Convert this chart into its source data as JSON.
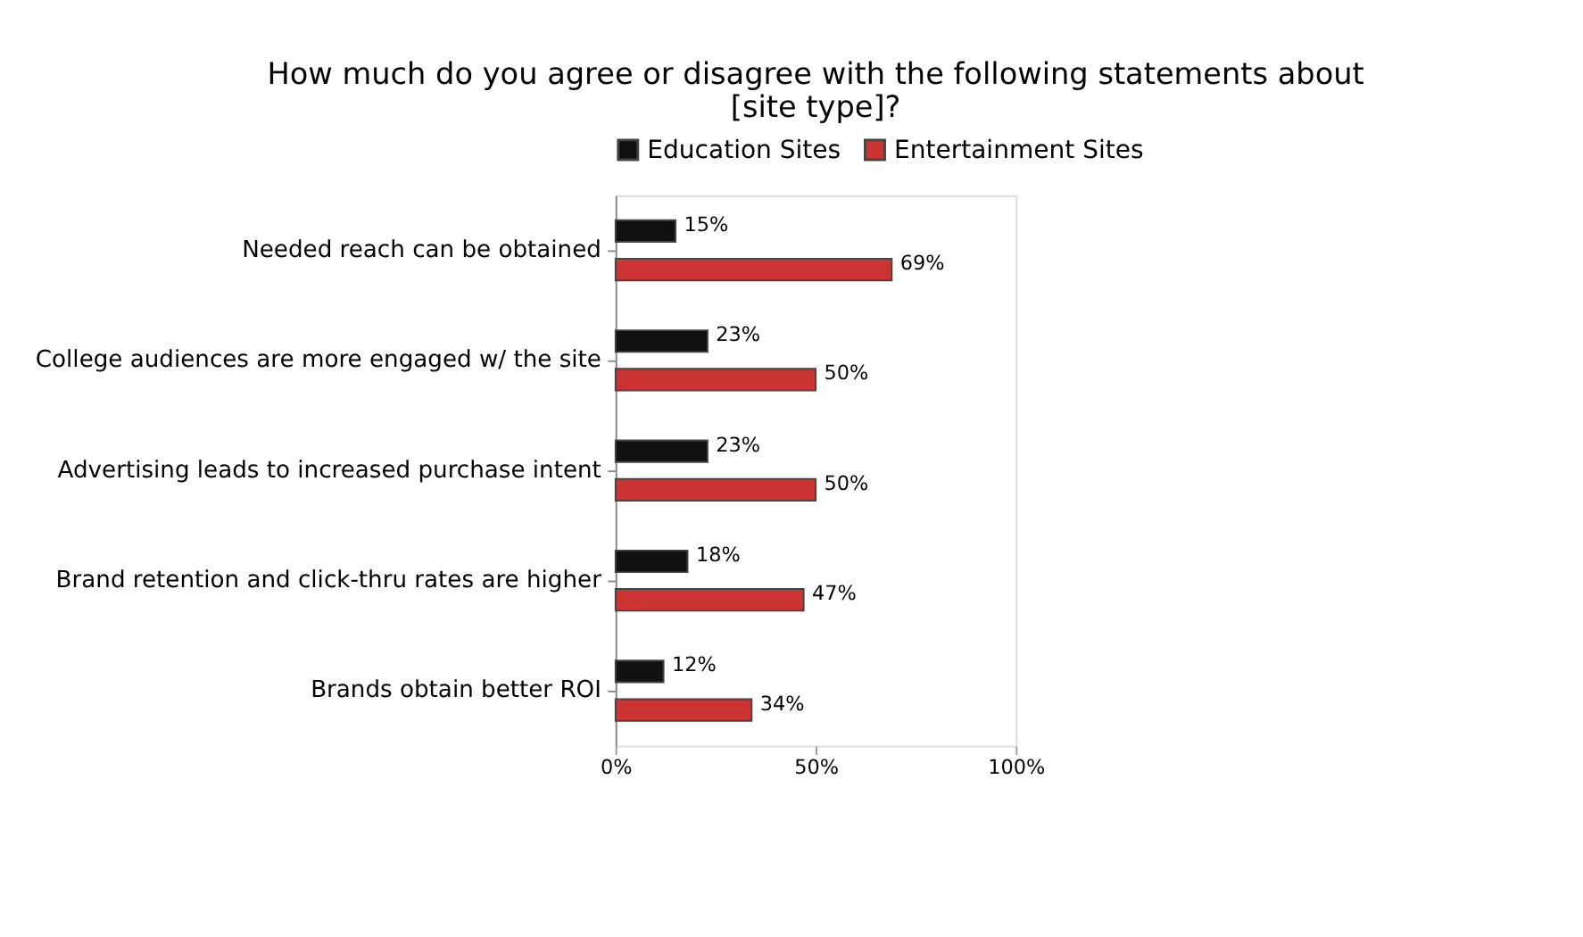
{
  "chart_data": {
    "type": "bar",
    "orientation": "horizontal",
    "title": "How much do you agree or disagree with the following statements about [site type]?",
    "categories": [
      "Needed reach can be obtained",
      "College audiences are more engaged w/ the site",
      "Advertising leads to increased purchase intent",
      "Brand retention and click-thru rates are higher",
      "Brands obtain better ROI"
    ],
    "series": [
      {
        "name": "Education Sites",
        "color": "#111111",
        "values": [
          15,
          23,
          23,
          18,
          12
        ],
        "value_labels": [
          "15%",
          "23%",
          "23%",
          "18%",
          "12%"
        ]
      },
      {
        "name": "Entertainment Sites",
        "color": "#cc3333",
        "values": [
          69,
          50,
          50,
          47,
          34
        ],
        "value_labels": [
          "69%",
          "50%",
          "50%",
          "47%",
          "34%"
        ]
      }
    ],
    "xlim": [
      0,
      100
    ],
    "xticks": [
      {
        "value": 0,
        "label": "0%"
      },
      {
        "value": 50,
        "label": "50%"
      },
      {
        "value": 100,
        "label": "100%"
      }
    ],
    "grid": false,
    "legend": "top"
  }
}
